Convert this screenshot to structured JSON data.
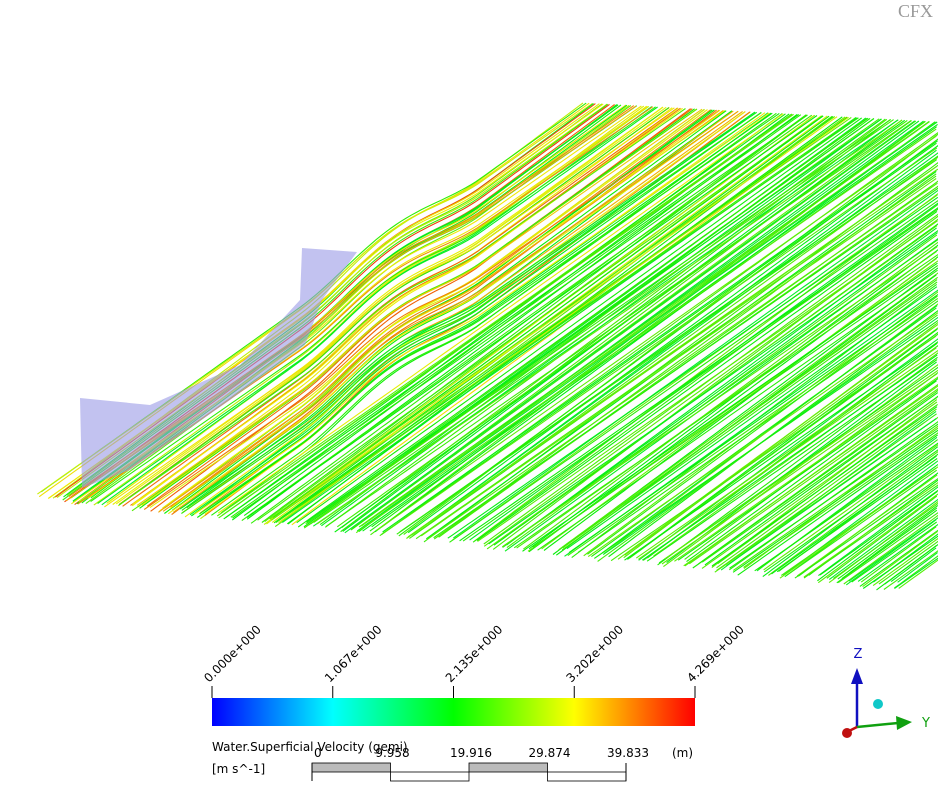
{
  "logo": "CFX",
  "legend": {
    "title": "Water.Superficial Velocity (gemi)",
    "unit": "[m s^-1]",
    "ticks": [
      "0.000e+000",
      "1.067e+000",
      "2.135e+000",
      "3.202e+000",
      "4.269e+000"
    ]
  },
  "scale_bar": {
    "ticks": [
      "0",
      "9.958",
      "19.916",
      "29.874",
      "39.833"
    ],
    "unit": "(m)"
  },
  "axes": {
    "z": "Z",
    "y": "Y"
  }
}
